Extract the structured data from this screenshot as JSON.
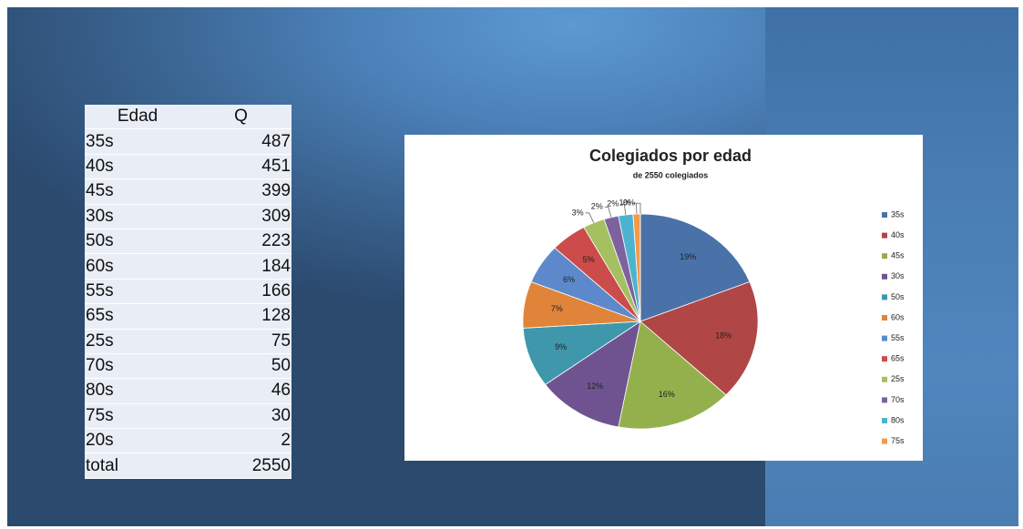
{
  "table": {
    "header": [
      "Edad",
      "Q"
    ],
    "rows": [
      [
        "35s",
        "487"
      ],
      [
        "40s",
        "451"
      ],
      [
        "45s",
        "399"
      ],
      [
        "30s",
        "309"
      ],
      [
        "50s",
        "223"
      ],
      [
        "60s",
        "184"
      ],
      [
        "55s",
        "166"
      ],
      [
        "65s",
        "128"
      ],
      [
        "25s",
        "75"
      ],
      [
        "70s",
        "50"
      ],
      [
        "80s",
        "46"
      ],
      [
        "75s",
        "30"
      ],
      [
        "20s",
        "2"
      ],
      [
        "total",
        "2550"
      ]
    ]
  },
  "chart_data": {
    "type": "pie",
    "title": "Colegiados por edad",
    "subtitle": "de 2550 colegiados",
    "categories": [
      "35s",
      "40s",
      "45s",
      "30s",
      "50s",
      "60s",
      "55s",
      "65s",
      "25s",
      "70s",
      "80s",
      "75s",
      null
    ],
    "values": [
      19,
      18,
      16,
      12,
      9,
      7,
      6,
      5,
      3,
      2,
      2,
      1,
      0
    ],
    "value_labels": [
      "19%",
      "18%",
      "16%",
      "12%",
      "9%",
      "7%",
      "6%",
      "5%",
      "3%",
      "2%",
      "2%",
      "1%",
      "0%"
    ],
    "colors": [
      "#4a72a8",
      "#b04645",
      "#93b04d",
      "#6f5391",
      "#3f97ac",
      "#e0843a",
      "#5d89cc",
      "#cc4b4b",
      "#a4c060",
      "#7e62a0",
      "#4cb4d0",
      "#f29a4a",
      "#9c4a8a"
    ],
    "legend": "right"
  }
}
